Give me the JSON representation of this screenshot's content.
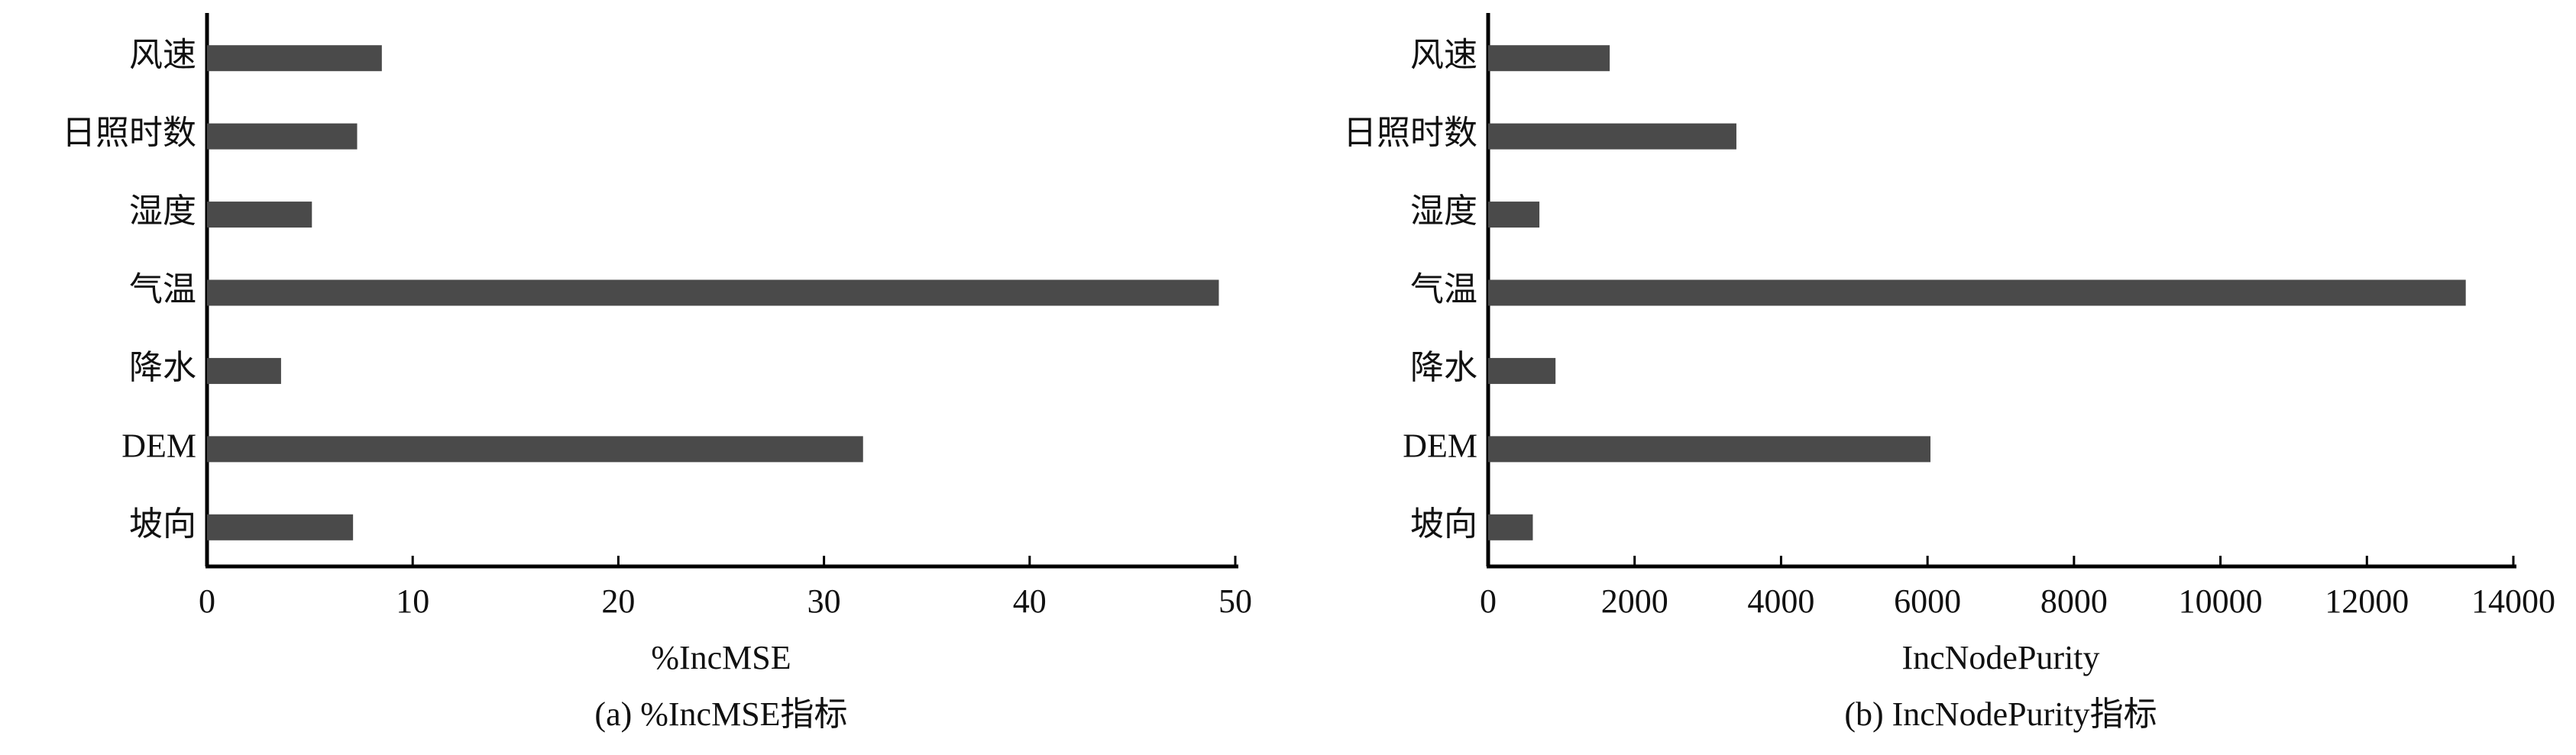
{
  "chart_data": [
    {
      "type": "bar",
      "orientation": "horizontal",
      "color": "#4a4a4a",
      "categories": [
        "风速",
        "日照时数",
        "湿度",
        "气温",
        "降水",
        "DEM",
        "坡向"
      ],
      "values": [
        8.5,
        7.3,
        5.1,
        49.2,
        3.6,
        31.9,
        7.1
      ],
      "xlim": [
        0,
        50
      ],
      "xticks": [
        0,
        10,
        20,
        30,
        40,
        50
      ],
      "xlabel": "%IncMSE",
      "caption": "(a) %IncMSE指标"
    },
    {
      "type": "bar",
      "orientation": "horizontal",
      "color": "#4a4a4a",
      "categories": [
        "风速",
        "日照时数",
        "湿度",
        "气温",
        "降水",
        "DEM",
        "坡向"
      ],
      "values": [
        1660,
        3390,
        700,
        13350,
        920,
        6040,
        610
      ],
      "xlim": [
        0,
        14000
      ],
      "xticks": [
        0,
        2000,
        4000,
        6000,
        8000,
        10000,
        12000,
        14000
      ],
      "xlabel": "IncNodePurity",
      "caption": "(b) IncNodePurity指标"
    }
  ]
}
